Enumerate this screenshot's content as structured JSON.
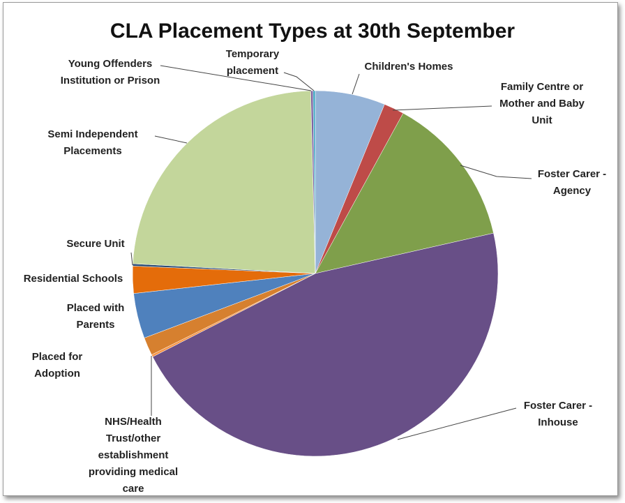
{
  "chart_data": {
    "type": "pie",
    "title": "CLA Placement Types at 30th September",
    "categories": [
      "Children's Homes",
      "Family Centre or Mother and Baby Unit",
      "Foster Carer - Agency",
      "Foster Carer - Inhouse",
      "NHS/Health Trust/other establishment providing medical care",
      "Placed for Adoption",
      "Placed with Parents",
      "Residential Schools",
      "Secure Unit",
      "Semi Independent Placements",
      "Young Offenders Institution or Prison",
      "Temporary placement"
    ],
    "values": [
      6.2,
      1.8,
      13.5,
      46.1,
      0.2,
      1.6,
      4.0,
      2.4,
      0.2,
      23.8,
      0.2,
      0.2
    ],
    "colors": [
      "#95b3d7",
      "#be4b48",
      "#7f9f4b",
      "#684f87",
      "#f79646",
      "#d6802f",
      "#4f81bd",
      "#e46c0a",
      "#2c4d75",
      "#c3d69b",
      "#8064a2",
      "#4bacc6"
    ]
  }
}
